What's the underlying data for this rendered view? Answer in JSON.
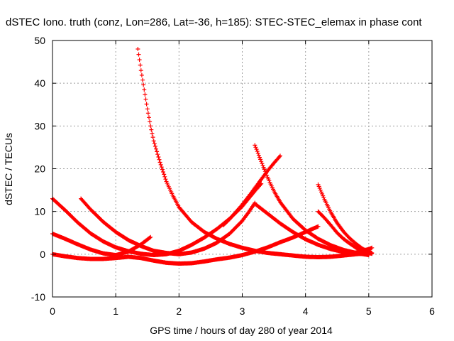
{
  "chart_data": {
    "type": "scatter",
    "title": "dSTEC Iono. truth (conz, Lon=286, Lat=-36, h=185): STEC-STEC_elemax in phase cont",
    "xlabel": "GPS time / hours of day 280 of year 2014",
    "ylabel": "dSTEC  / TECUs",
    "xlim": [
      0,
      6
    ],
    "ylim": [
      -10,
      50
    ],
    "xticks": [
      "0",
      "1",
      "2",
      "3",
      "4",
      "5",
      "6"
    ],
    "yticks": [
      "-10",
      "0",
      "10",
      "20",
      "30",
      "40",
      "50"
    ],
    "grid": true,
    "marker": "plus",
    "color": "#ff0000",
    "series": [
      {
        "x": [
          1.35,
          1.4,
          1.45,
          1.5,
          1.55,
          1.6,
          1.7,
          1.8,
          1.9,
          2.0,
          2.2,
          2.4,
          2.6,
          2.8,
          3.0,
          3.2,
          3.4,
          3.6,
          3.8,
          4.0,
          4.2,
          4.4,
          4.6,
          4.8,
          5.0
        ],
        "y": [
          48,
          43,
          38.5,
          34,
          30,
          26.5,
          21.5,
          17,
          13.8,
          11,
          7.5,
          5.2,
          3.6,
          2.4,
          1.5,
          0.8,
          0.3,
          0,
          -0.3,
          -0.6,
          -0.7,
          -0.6,
          -0.3,
          0,
          0.3
        ]
      },
      {
        "x": [
          0.45,
          0.6,
          0.8,
          1.0,
          1.2,
          1.4,
          1.6,
          1.8,
          2.0,
          2.2,
          2.4,
          2.6,
          2.8,
          3.0,
          3.1,
          3.2
        ],
        "y": [
          13,
          10.5,
          7.6,
          5.2,
          3.3,
          1.9,
          0.8,
          0.3,
          0,
          0.4,
          1.3,
          2.7,
          4.8,
          7.8,
          9.8,
          12
        ]
      },
      {
        "x": [
          0.0,
          0.2,
          0.4,
          0.6,
          0.8,
          1.0,
          1.2,
          1.4,
          1.6,
          1.8,
          2.0,
          2.2,
          2.4,
          2.6,
          2.8,
          3.0,
          3.2,
          3.3
        ],
        "y": [
          13,
          10.3,
          7.4,
          4.9,
          3.0,
          1.6,
          0.7,
          0.1,
          -0.2,
          0,
          0.8,
          2.2,
          3.9,
          5.9,
          8.3,
          11.2,
          14.8,
          16.5
        ]
      },
      {
        "x": [
          0.0,
          0.2,
          0.4,
          0.6,
          0.8,
          1.0,
          1.2,
          1.4,
          1.55
        ],
        "y": [
          4.8,
          3.6,
          2.3,
          1.1,
          0.2,
          -0.2,
          0.6,
          2.3,
          4.0
        ]
      },
      {
        "x": [
          0.0,
          0.2,
          0.4,
          0.6,
          0.8,
          1.0,
          1.2,
          1.4,
          1.6,
          1.8,
          2.0,
          2.2,
          2.4,
          2.6,
          2.8,
          3.0,
          3.2,
          3.4,
          3.6,
          3.8,
          4.0,
          4.2
        ],
        "y": [
          0,
          -0.5,
          -0.9,
          -1.1,
          -1.1,
          -0.9,
          -0.6,
          -0.9,
          -1.5,
          -2.0,
          -2.2,
          -2.1,
          -1.7,
          -1.2,
          -0.8,
          -0.2,
          0.6,
          1.6,
          2.8,
          3.9,
          5.2,
          6.5
        ]
      },
      {
        "x": [
          3.2,
          3.3,
          3.4,
          3.5,
          3.6,
          3.8,
          4.0,
          4.2,
          4.4,
          4.6,
          4.8,
          5.0
        ],
        "y": [
          25.5,
          21.7,
          18,
          14.8,
          12.2,
          8.3,
          5.6,
          3.6,
          2.1,
          1.0,
          0.3,
          -0.2
        ]
      },
      {
        "x": [
          2.7,
          2.8,
          2.9,
          3.0,
          3.1,
          3.2,
          3.3,
          3.4,
          3.5,
          3.6
        ],
        "y": [
          6.8,
          8.2,
          9.9,
          11.6,
          13.5,
          15.5,
          17.5,
          19.5,
          21.3,
          23
        ]
      },
      {
        "x": [
          3.2,
          3.4,
          3.6,
          3.8,
          4.0,
          4.2,
          4.4,
          4.6,
          4.8,
          5.0
        ],
        "y": [
          11.8,
          9.5,
          7.2,
          5.2,
          3.5,
          2.2,
          1.2,
          0.5,
          0.1,
          0
        ]
      },
      {
        "x": [
          4.2,
          4.3,
          4.4,
          4.5,
          4.6,
          4.7,
          4.8,
          4.9,
          5.0,
          5.05
        ],
        "y": [
          16.3,
          12.8,
          9.8,
          7.3,
          5.3,
          3.7,
          2.4,
          1.3,
          0.5,
          0.3
        ]
      },
      {
        "x": [
          4.2,
          4.3,
          4.4,
          4.5,
          4.6,
          4.7,
          4.8,
          4.9,
          5.0,
          5.05
        ],
        "y": [
          10,
          8.5,
          6.8,
          5.0,
          3.6,
          2.5,
          1.5,
          0.8,
          0.3,
          0.1
        ]
      },
      {
        "x": [
          4.6,
          4.7,
          4.8,
          4.9,
          5.0,
          5.05
        ],
        "y": [
          -0.3,
          0,
          0.4,
          0.8,
          1.2,
          1.5
        ]
      }
    ]
  }
}
